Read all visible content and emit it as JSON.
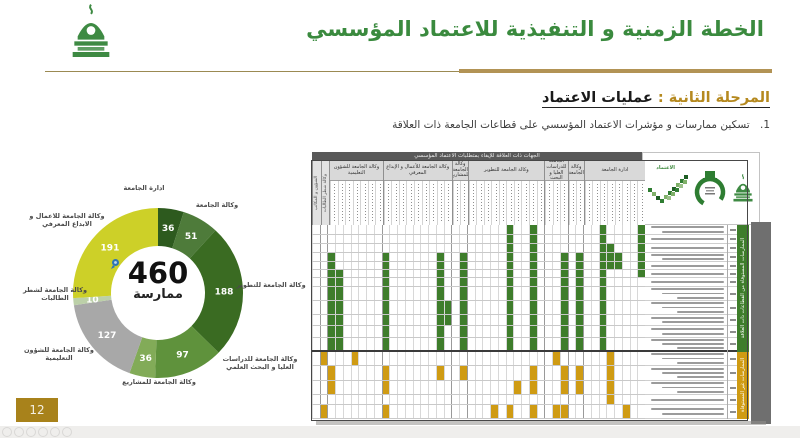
{
  "header": {
    "title": "الخطة الزمنية و التنفيذية للاعتماد المؤسسي"
  },
  "phase": {
    "label": "المرحلة الثانية :",
    "name": "عمليات الاعتماد",
    "item_number": "1.",
    "item_text": "تسكين ممارسات و مؤشرات الاعتماد المؤسسي على قطاعات الجامعة ذات العلاقة"
  },
  "page_number": "12",
  "chart_data": {
    "type": "donut",
    "title": "",
    "center_value": "460",
    "center_label": "ممارسة",
    "angle_total": 736,
    "legend_position": "around",
    "segments": [
      {
        "label": "ادارة الجامعة",
        "value": 36,
        "color": "#2d5a1e"
      },
      {
        "label": "وكالة الجامعة",
        "value": 51,
        "color": "#4e7b3a"
      },
      {
        "label": "وكالة الجامعة للتطوير",
        "value": 188,
        "color": "#3a6b22"
      },
      {
        "label": "وكالة الجامعة للدراسات العليا و البحث العلمي",
        "value": 97,
        "color": "#5f923c"
      },
      {
        "label": "وكالة الجامعة للمشاريع",
        "value": 36,
        "color": "#82ab58"
      },
      {
        "label": "وكالة الجامعة للشؤون التعليمية",
        "value": 127,
        "color": "#a8a8a8"
      },
      {
        "label": "وكالة الجامعة لشطر الطالبات",
        "value": 10,
        "color": "#bcd0a8"
      },
      {
        "label": "وكالة الجامعة للاعمال و الابداع المعرفي",
        "value": 191,
        "color": "#cdd028"
      }
    ]
  },
  "table": {
    "title": "الجهات ذات العلاقة للإيفاء بمتطلبات الاعتماد المؤسسي",
    "logo_caption": "الاعتماد",
    "logos": [
      "accreditation-check-logo",
      "quality-deanship-logo",
      "kau-logo"
    ],
    "groups": [
      {
        "label": "ادارة الجامعة",
        "cols": 8
      },
      {
        "label": "وكالة الجامعة",
        "cols": 2
      },
      {
        "label": "وكالة الجامعة للدراسات العليا و البحث العلمي",
        "cols": 3
      },
      {
        "label": "وكالة الجامعة للتطوير",
        "cols": 10
      },
      {
        "label": "وكالة الجامعة للمشاريع",
        "cols": 2
      },
      {
        "label": "وكالة الجامعة للأعمال و الإبداع المعرفي",
        "cols": 9
      },
      {
        "label": "وكالة الجامعة للشؤون التعليمية",
        "cols": 7
      },
      {
        "label": "وكالة شطر الطالبات",
        "cols": 1
      },
      {
        "label": "الشؤون و المكاتب",
        "cols": 1
      }
    ],
    "sections": [
      {
        "band_label": "الممارسات المستوفاة من القطاعات ذات العلاقة",
        "color": "#3e7d2b",
        "row_label_lines": [
          2,
          1,
          1,
          2,
          1,
          1,
          1,
          3,
          3,
          2,
          2,
          3
        ]
      },
      {
        "band_label": "الممارسات غير المستوفاة",
        "color": "#cf9b13",
        "row_label_lines": [
          3,
          3,
          3,
          1,
          2
        ]
      }
    ],
    "cell_colors": {
      "green": "#3e7d2b",
      "gold": "#cf9b13"
    },
    "green_bars": [
      [
        1,
        1,
        6
      ],
      [
        4,
        4,
        5
      ],
      [
        5,
        3,
        5
      ],
      [
        6,
        1,
        12
      ],
      [
        9,
        4,
        12
      ],
      [
        11,
        4,
        12
      ],
      [
        15,
        1,
        12
      ],
      [
        18,
        1,
        12
      ],
      [
        24,
        4,
        12
      ],
      [
        26,
        9,
        10
      ],
      [
        27,
        4,
        12
      ],
      [
        34,
        4,
        12
      ],
      [
        40,
        6,
        12
      ],
      [
        41,
        4,
        12
      ]
    ],
    "gold_cells": {
      "13": [
        42,
        38,
        12,
        5
      ],
      "14": [
        41,
        34,
        27,
        24,
        15,
        11,
        9,
        5
      ],
      "15": [
        41,
        34,
        17,
        15,
        11,
        9,
        5
      ],
      "16": [
        5
      ],
      "17": [
        42,
        34,
        20,
        18,
        15,
        12,
        11,
        3
      ]
    }
  },
  "footer": {
    "player_controls": [
      "control-icon",
      "control-icon",
      "control-icon",
      "control-icon",
      "control-icon",
      "control-icon"
    ]
  }
}
